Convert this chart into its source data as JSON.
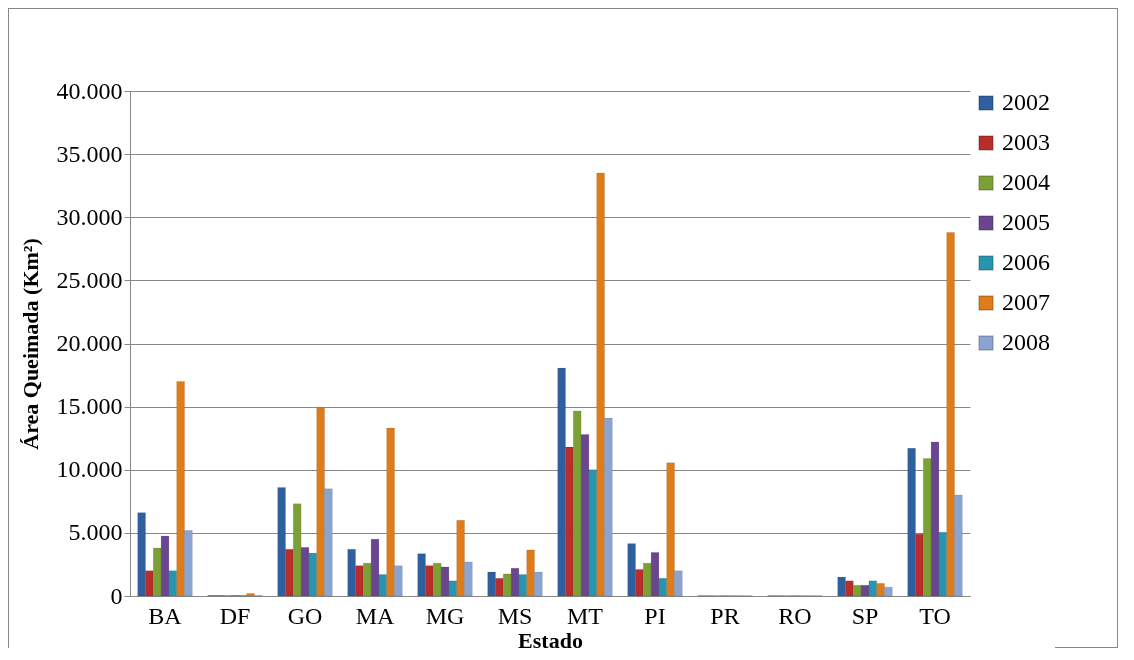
{
  "chart_data": {
    "type": "bar",
    "xlabel": "Estado",
    "ylabel": "Área Queimada (Km²)",
    "categories": [
      "BA",
      "DF",
      "GO",
      "MA",
      "MG",
      "MS",
      "MT",
      "PI",
      "PR",
      "RO",
      "SP",
      "TO"
    ],
    "series": [
      {
        "name": "2002",
        "color": "#2e5f9e",
        "values": [
          6600,
          50,
          8600,
          3700,
          3350,
          1900,
          18050,
          4150,
          30,
          30,
          1500,
          11700
        ]
      },
      {
        "name": "2003",
        "color": "#b92e2b",
        "values": [
          2000,
          50,
          3700,
          2400,
          2400,
          1400,
          11800,
          2100,
          30,
          30,
          1200,
          4900
        ]
      },
      {
        "name": "2004",
        "color": "#7da036",
        "values": [
          3800,
          50,
          7300,
          2600,
          2600,
          1750,
          14650,
          2600,
          30,
          30,
          850,
          10900
        ]
      },
      {
        "name": "2005",
        "color": "#6a4691",
        "values": [
          4750,
          50,
          3850,
          4500,
          2300,
          2200,
          12800,
          3450,
          30,
          30,
          850,
          12200
        ]
      },
      {
        "name": "2006",
        "color": "#2795b0",
        "values": [
          2000,
          50,
          3400,
          1700,
          1200,
          1700,
          10000,
          1400,
          30,
          30,
          1200,
          5050
        ]
      },
      {
        "name": "2007",
        "color": "#e07b19",
        "values": [
          17000,
          200,
          14900,
          13300,
          6000,
          3650,
          33500,
          10550,
          30,
          30,
          1000,
          28800
        ]
      },
      {
        "name": "2008",
        "color": "#8aa5d2",
        "values": [
          5200,
          50,
          8500,
          2400,
          2700,
          1900,
          14100,
          2000,
          30,
          30,
          700,
          8000
        ]
      }
    ],
    "ylim": [
      0,
      40000
    ],
    "yticks": [
      0,
      {
        "value": 5000,
        "label": "5.000"
      },
      {
        "value": 10000,
        "label": "10.000"
      },
      {
        "value": 15000,
        "label": "15.000"
      },
      {
        "value": 20000,
        "label": "20.000"
      },
      {
        "value": 25000,
        "label": "25.000"
      },
      {
        "value": 30000,
        "label": "30.000"
      },
      {
        "value": 35000,
        "label": "35.000"
      },
      {
        "value": 40000,
        "label": "40.000"
      }
    ],
    "grid": "y",
    "legend": "top right"
  }
}
